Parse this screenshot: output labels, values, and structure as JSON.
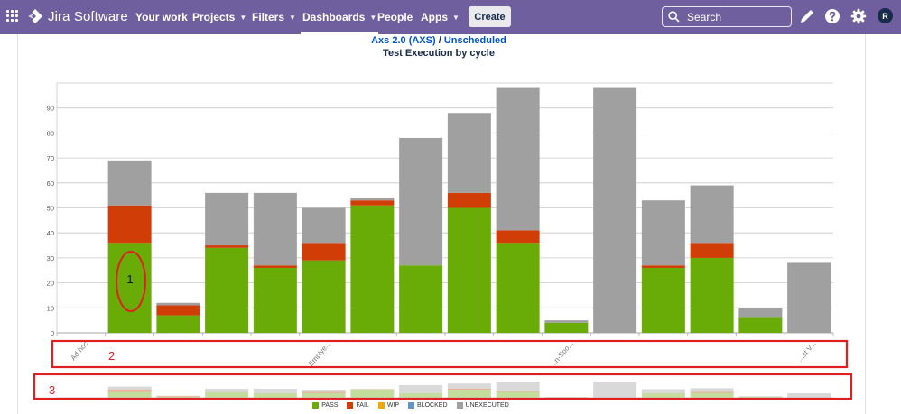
{
  "nav": {
    "logo": "Jira Software",
    "items": [
      {
        "label": "Your work",
        "caret": false
      },
      {
        "label": "Projects",
        "caret": true
      },
      {
        "label": "Filters",
        "caret": true
      },
      {
        "label": "Dashboards",
        "caret": true,
        "active": true
      },
      {
        "label": "People",
        "caret": false
      },
      {
        "label": "Apps",
        "caret": true
      }
    ],
    "create_label": "Create",
    "search_placeholder": "Search",
    "avatar_initial": "R",
    "bar_color": "#6f5f9e"
  },
  "heading": {
    "project": "Axs 2.0 (AXS)",
    "separator": " / ",
    "version": "Unscheduled",
    "subtitle": "Test Execution by cycle"
  },
  "chart_data": {
    "type": "bar",
    "stacked": true,
    "ylim": [
      0,
      100
    ],
    "yticks": [
      0,
      10,
      20,
      30,
      40,
      50,
      60,
      70,
      80,
      90
    ],
    "grid": true,
    "legend_position": "bottom",
    "x_tick_labels": [
      {
        "index": 0,
        "text": "Ad hoc"
      },
      {
        "index": 5,
        "text": "Emplye..."
      },
      {
        "index": 10,
        "text": "...n-Spo..."
      },
      {
        "index": 15,
        "text": "...st V..."
      }
    ],
    "series": [
      {
        "name": "PASS",
        "color": "#6aac07",
        "values": [
          0,
          36,
          7,
          34,
          26,
          29,
          51,
          27,
          50,
          36,
          4,
          0,
          26,
          30,
          6,
          0
        ]
      },
      {
        "name": "FAIL",
        "color": "#d13d07",
        "values": [
          0,
          15,
          4,
          1,
          1,
          7,
          2,
          0,
          6,
          5,
          0,
          0,
          1,
          6,
          0,
          0
        ]
      },
      {
        "name": "WIP",
        "color": "#f0a70c",
        "values": [
          0,
          0,
          0,
          0,
          0,
          0,
          0,
          0,
          0,
          0,
          0,
          0,
          0,
          0,
          0,
          0
        ]
      },
      {
        "name": "BLOCKED",
        "color": "#6694c9",
        "values": [
          0,
          0,
          0,
          0,
          0,
          0,
          0,
          0,
          0,
          0,
          0,
          0,
          0,
          0,
          0,
          0
        ]
      },
      {
        "name": "UNEXECUTED",
        "color": "#a0a0a0",
        "values": [
          0,
          18,
          1,
          21,
          29,
          14,
          1,
          51,
          32,
          57,
          1,
          98,
          26,
          23,
          4,
          28
        ]
      }
    ]
  },
  "annotations": [
    {
      "label": "1",
      "color": "#e02020"
    },
    {
      "label": "2",
      "color": "#e02020"
    },
    {
      "label": "3",
      "color": "#e02020"
    }
  ]
}
